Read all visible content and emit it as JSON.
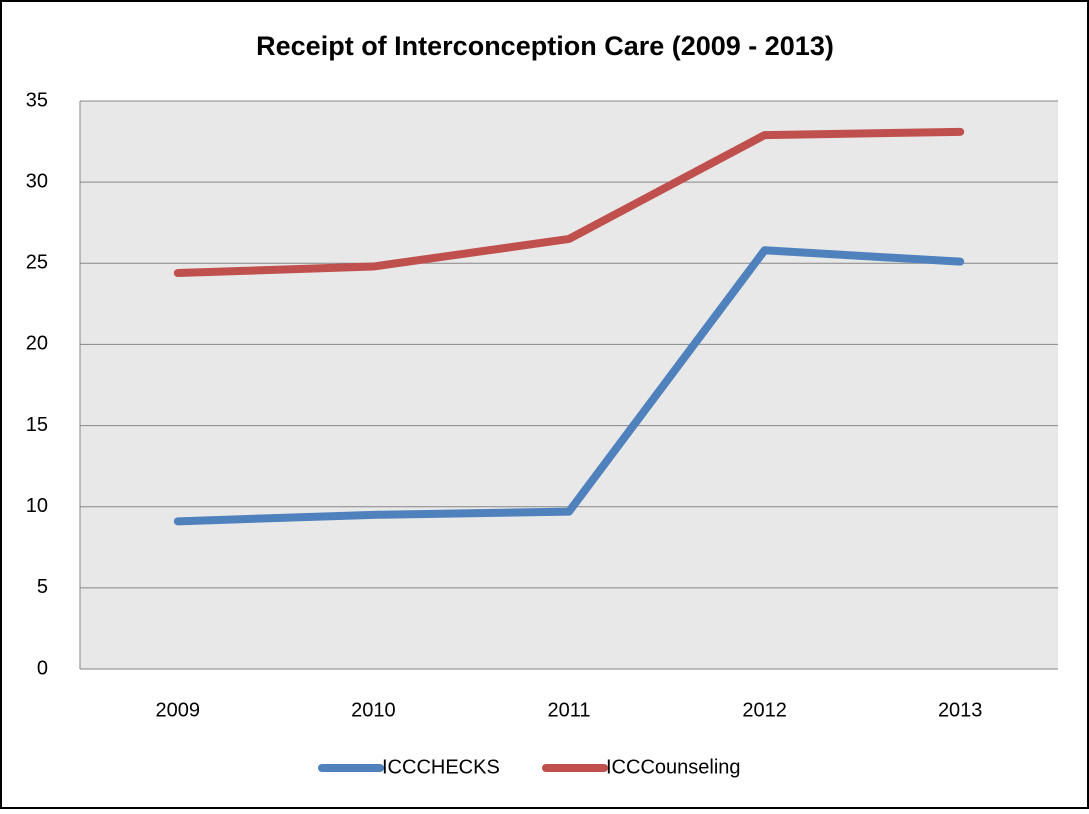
{
  "chart_data": {
    "type": "line",
    "title": "Receipt of Interconception Care (2009 - 2013)",
    "categories": [
      "2009",
      "2010",
      "2011",
      "2012",
      "2013"
    ],
    "series": [
      {
        "name": "ICCCHECKS",
        "color": "#4f81bd",
        "values": [
          9.1,
          9.5,
          9.7,
          25.8,
          25.1
        ]
      },
      {
        "name": "ICCCounseling",
        "color": "#c0504d",
        "values": [
          24.4,
          24.8,
          26.5,
          32.9,
          33.1
        ]
      }
    ],
    "ylim": [
      0,
      35
    ],
    "yticks": [
      0,
      5,
      10,
      15,
      20,
      25,
      30,
      35
    ],
    "grid": true,
    "legend": "bottom"
  }
}
